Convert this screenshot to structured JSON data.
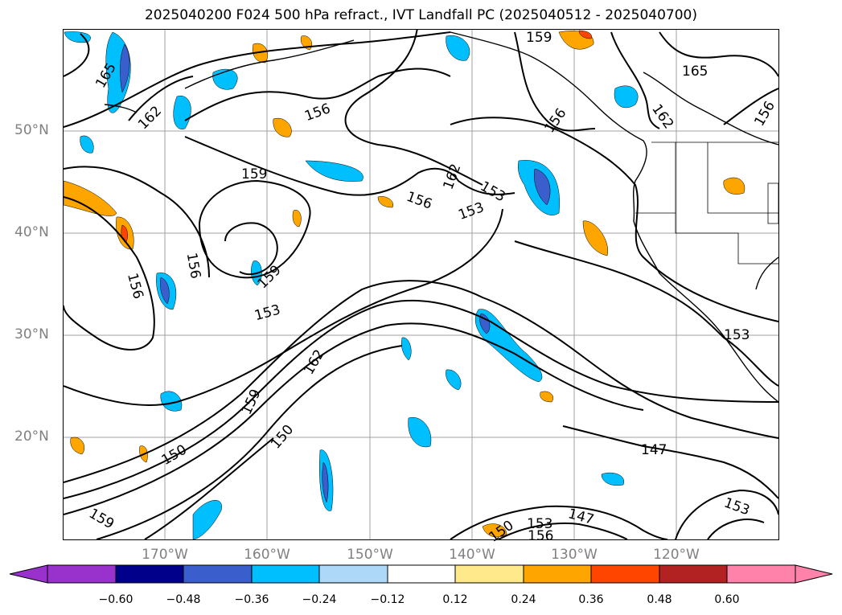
{
  "title": "2025040200 F024 500 hPa refract., IVT Landfall PC (2025040512 - 2025040700)",
  "lat_labels": [
    "50°N",
    "40°N",
    "30°N",
    "20°N"
  ],
  "lon_labels": [
    "170°W",
    "160°W",
    "150°W",
    "140°W",
    "130°W",
    "120°W"
  ],
  "contour_labels": [
    "165",
    "162",
    "156",
    "159",
    "156",
    "159",
    "156",
    "153",
    "153",
    "159",
    "156",
    "156",
    "162",
    "159",
    "153",
    "150",
    "150",
    "162",
    "147",
    "153",
    "153",
    "150",
    "147",
    "156",
    "162",
    "165",
    "156",
    "159",
    "153"
  ],
  "colorbar": {
    "ticks": [
      "−0.60",
      "−0.48",
      "−0.36",
      "−0.24",
      "−0.12",
      "0.12",
      "0.24",
      "0.36",
      "0.48",
      "0.60"
    ],
    "colors": [
      "#9932cc",
      "#00008b",
      "#3a5fcd",
      "#00bfff",
      "#add8f7",
      "#ffffff",
      "#ffe98a",
      "#ffa500",
      "#ff4500",
      "#b22222",
      "#ff82ab"
    ]
  },
  "map": {
    "extent": {
      "lon": [
        -180,
        -110
      ],
      "lat": [
        10,
        60
      ]
    },
    "gridlines": true,
    "field": "500 hPa refractivity contours with IVT landfall PC shading"
  }
}
